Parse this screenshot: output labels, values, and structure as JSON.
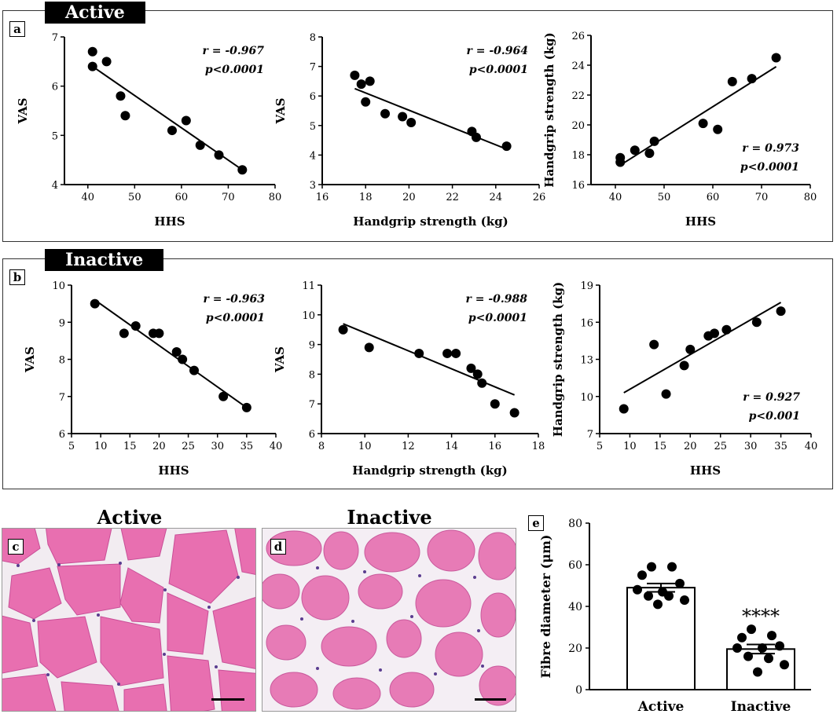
{
  "groups": {
    "active_title": "Active",
    "inactive_title": "Inactive"
  },
  "panel_letters": {
    "a": "a",
    "b": "b",
    "c": "c",
    "d": "d",
    "e": "e"
  },
  "histology": {
    "active_title": "Active",
    "inactive_title": "Inactive"
  },
  "chart_data": [
    {
      "id": "a1",
      "type": "scatter",
      "xlabel": "HHS",
      "ylabel": "VAS",
      "xlim": [
        35,
        80
      ],
      "ylim": [
        4,
        7
      ],
      "xticks": [
        40,
        50,
        60,
        70,
        80
      ],
      "yticks": [
        4,
        5,
        6,
        7
      ],
      "x": [
        41,
        41,
        44,
        47,
        48,
        58,
        61,
        64,
        68,
        73
      ],
      "y": [
        6.7,
        6.4,
        6.5,
        5.8,
        5.4,
        5.1,
        5.3,
        4.8,
        4.6,
        4.3
      ],
      "fit": [
        [
          41,
          6.4
        ],
        [
          73,
          4.3
        ]
      ],
      "stat_r": "r = -0.967",
      "stat_p": "p<0.0001",
      "stat_pos": "top-right"
    },
    {
      "id": "a2",
      "type": "scatter",
      "xlabel": "Handgrip strength (kg)",
      "ylabel": "VAS",
      "xlim": [
        16,
        26
      ],
      "ylim": [
        3,
        8
      ],
      "xticks": [
        16,
        18,
        20,
        22,
        24,
        26
      ],
      "yticks": [
        3,
        4,
        5,
        6,
        7,
        8
      ],
      "x": [
        17.5,
        17.8,
        18.0,
        18.2,
        18.9,
        19.7,
        20.1,
        22.9,
        23.1,
        24.5
      ],
      "y": [
        6.7,
        6.4,
        5.8,
        6.5,
        5.4,
        5.3,
        5.1,
        4.8,
        4.6,
        4.3
      ],
      "fit": [
        [
          17.5,
          6.25
        ],
        [
          24.5,
          4.2
        ]
      ],
      "stat_r": "r = -0.964",
      "stat_p": "p<0.0001",
      "stat_pos": "top-right"
    },
    {
      "id": "a3",
      "type": "scatter",
      "xlabel": "HHS",
      "ylabel": "Handgrip strength (kg)",
      "xlim": [
        35,
        80
      ],
      "ylim": [
        16,
        26
      ],
      "xticks": [
        40,
        50,
        60,
        70,
        80
      ],
      "yticks": [
        16,
        18,
        20,
        22,
        24,
        26
      ],
      "x": [
        41,
        41,
        44,
        47,
        48,
        58,
        61,
        64,
        68,
        73
      ],
      "y": [
        17.8,
        17.5,
        18.3,
        18.1,
        18.9,
        20.1,
        19.7,
        22.9,
        23.1,
        24.5
      ],
      "fit": [
        [
          41,
          17.3
        ],
        [
          73,
          23.9
        ]
      ],
      "stat_r": "r = 0.973",
      "stat_p": "p<0.0001",
      "stat_pos": "bottom-right"
    },
    {
      "id": "b1",
      "type": "scatter",
      "xlabel": "HHS",
      "ylabel": "VAS",
      "xlim": [
        5,
        40
      ],
      "ylim": [
        6,
        10
      ],
      "xticks": [
        5,
        10,
        15,
        20,
        25,
        30,
        35,
        40
      ],
      "yticks": [
        6,
        7,
        8,
        9,
        10
      ],
      "x": [
        9,
        14,
        16,
        19,
        20,
        23,
        24,
        26,
        31,
        35
      ],
      "y": [
        9.5,
        8.7,
        8.9,
        8.7,
        8.7,
        8.2,
        8.0,
        7.7,
        7.0,
        6.7
      ],
      "fit": [
        [
          9,
          9.6
        ],
        [
          35,
          6.7
        ]
      ],
      "stat_r": "r = -0.963",
      "stat_p": "p<0.0001",
      "stat_pos": "top-right"
    },
    {
      "id": "b2",
      "type": "scatter",
      "xlabel": "Handgrip strength (kg)",
      "ylabel": "VAS",
      "xlim": [
        8,
        18
      ],
      "ylim": [
        6,
        11
      ],
      "xticks": [
        8,
        10,
        12,
        14,
        16,
        18
      ],
      "yticks": [
        6,
        7,
        8,
        9,
        10,
        11
      ],
      "x": [
        9.0,
        10.2,
        12.5,
        13.8,
        14.2,
        14.9,
        15.2,
        15.4,
        16.0,
        16.9
      ],
      "y": [
        9.5,
        8.9,
        8.7,
        8.7,
        8.7,
        8.2,
        8.0,
        7.7,
        7.0,
        6.7
      ],
      "fit": [
        [
          9.0,
          9.7
        ],
        [
          16.9,
          7.3
        ]
      ],
      "stat_r": "r = -0.988",
      "stat_p": "p<0.0001",
      "stat_pos": "top-right"
    },
    {
      "id": "b3",
      "type": "scatter",
      "xlabel": "HHS",
      "ylabel": "Handgrip strength (kg)",
      "xlim": [
        5,
        40
      ],
      "ylim": [
        7,
        19
      ],
      "xticks": [
        5,
        10,
        15,
        20,
        25,
        30,
        35,
        40
      ],
      "yticks": [
        7,
        10,
        13,
        16,
        19
      ],
      "x": [
        9,
        14,
        16,
        19,
        20,
        23,
        24,
        26,
        31,
        35
      ],
      "y": [
        9.0,
        14.2,
        10.2,
        12.5,
        13.8,
        14.9,
        15.1,
        15.4,
        16.0,
        16.9
      ],
      "fit": [
        [
          9,
          10.3
        ],
        [
          35,
          17.6
        ]
      ],
      "stat_r": "r = 0.927",
      "stat_p": "p<0.001",
      "stat_pos": "bottom-right"
    },
    {
      "id": "e",
      "type": "bar",
      "ylabel": "Fibre diameter (μm)",
      "ylim": [
        0,
        80
      ],
      "yticks": [
        0,
        20,
        40,
        60,
        80
      ],
      "categories": [
        "Active",
        "Inactive"
      ],
      "values": [
        49,
        19.5
      ],
      "errors": [
        2.0,
        2.2
      ],
      "points": [
        [
          59,
          59,
          55,
          51,
          48,
          47,
          45,
          45,
          43,
          41
        ],
        [
          29,
          26,
          25,
          21,
          20,
          20,
          16,
          15,
          12,
          8.5
        ]
      ],
      "annotation": "****"
    }
  ]
}
